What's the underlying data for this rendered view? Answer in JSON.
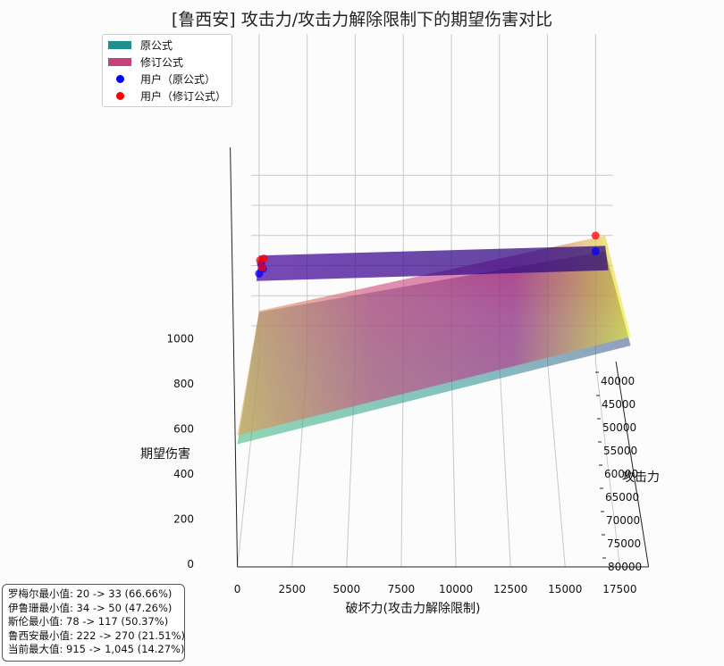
{
  "chart_data": {
    "type": "surface3d",
    "title": "[鲁西安] 攻击力/攻击力解除限制下的期望伤害对比",
    "xlabel": "破坏力(攻击力解除限制)",
    "ylabel": "攻击力",
    "zlabel": "期望伤害",
    "x_ticks": [
      "0",
      "2500",
      "5000",
      "7500",
      "10000",
      "12500",
      "15000",
      "17500"
    ],
    "y_ticks": [
      "40000",
      "45000",
      "50000",
      "55000",
      "60000",
      "65000",
      "70000",
      "75000",
      "80000"
    ],
    "z_ticks": [
      "0",
      "200",
      "400",
      "600",
      "800",
      "1000"
    ],
    "xlim": [
      0,
      18000
    ],
    "ylim": [
      40000,
      80000
    ],
    "zlim": [
      0,
      1100
    ],
    "surfaces": [
      {
        "name": "原公式",
        "color": "#21908d",
        "corners": {
          "x0y40000": 410,
          "x18000y40000": 915,
          "x0y80000": 560,
          "x18000y80000": 1010
        }
      },
      {
        "name": "修订公式",
        "color": "#c2427a",
        "corners": {
          "x0y40000": 420,
          "x18000y40000": 1045,
          "x0y80000": 600,
          "x18000y80000": 1050
        }
      }
    ],
    "points": [
      {
        "name": "用户（原公式）",
        "color": "#0000ff",
        "values": [
          {
            "x": 0,
            "y": 40000,
            "z": 730
          },
          {
            "x": 200,
            "y": 40000,
            "z": 770
          },
          {
            "x": 100,
            "y": 40000,
            "z": 810
          },
          {
            "x": 17500,
            "y": 40000,
            "z": 915
          }
        ]
      },
      {
        "name": "用户（修订公式）",
        "color": "#ff0000",
        "values": [
          {
            "x": 150,
            "y": 40000,
            "z": 780
          },
          {
            "x": 250,
            "y": 40000,
            "z": 855
          },
          {
            "x": 50,
            "y": 40000,
            "z": 840
          },
          {
            "x": 17500,
            "y": 40000,
            "z": 1045
          }
        ]
      }
    ],
    "legend_position": "top-left"
  },
  "legend": {
    "items": [
      {
        "label": "原公式",
        "color": "#21908d",
        "kind": "patch"
      },
      {
        "label": "修订公式",
        "color": "#c2427a",
        "kind": "patch"
      },
      {
        "label": "用户（原公式）",
        "color": "#0000ff",
        "kind": "dot"
      },
      {
        "label": "用户（修订公式）",
        "color": "#ff0000",
        "kind": "dot"
      }
    ]
  },
  "notes": [
    "罗梅尔最小值: 20 -> 33 (66.66%)",
    "伊鲁珊最小值: 34 -> 50 (47.26%)",
    "斯伦最小值: 78 -> 117 (50.37%)",
    "鲁西安最小值: 222 -> 270 (21.51%)",
    "当前最大值: 915 -> 1,045 (14.27%)"
  ]
}
